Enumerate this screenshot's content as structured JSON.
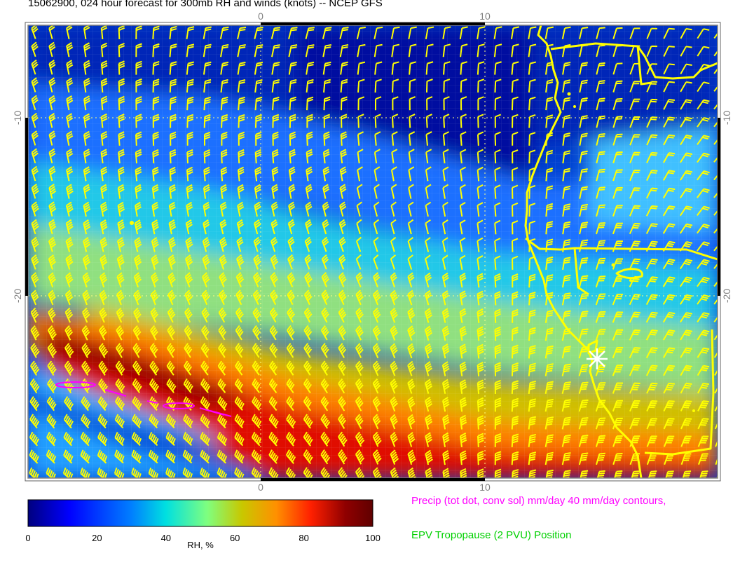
{
  "title": "15062900, 024 hour forecast for 300mb RH and winds (knots) -- NCEP GFS",
  "axes": {
    "top_ticks": [
      "0",
      "10"
    ],
    "bottom_ticks": [
      "0",
      "10"
    ],
    "left_ticks": [
      "-10",
      "-20"
    ],
    "right_ticks": [
      "-10",
      "-20"
    ]
  },
  "colorbar": {
    "label": "RH, %",
    "ticks": [
      "0",
      "20",
      "40",
      "60",
      "80",
      "100"
    ],
    "min": 0,
    "max": 100,
    "colors": [
      "#00007f",
      "#0000ff",
      "#007fff",
      "#00e0e0",
      "#7fff7f",
      "#c8c800",
      "#ff9000",
      "#ff2000",
      "#900000",
      "#600000"
    ]
  },
  "legend": {
    "precip": "Precip (tot dot, conv sol) mm/day 40 mm/day contours,",
    "epv": "EPV Tropopause (2 PVU) Position"
  },
  "colors": {
    "wind_barbs": "#ffff00",
    "coastline": "#ffff00",
    "precip_contour": "#ff00ff",
    "epv_text": "#00d000",
    "marker": "#ffffff"
  },
  "symbols": [
    "wind-barb",
    "star-marker"
  ]
}
